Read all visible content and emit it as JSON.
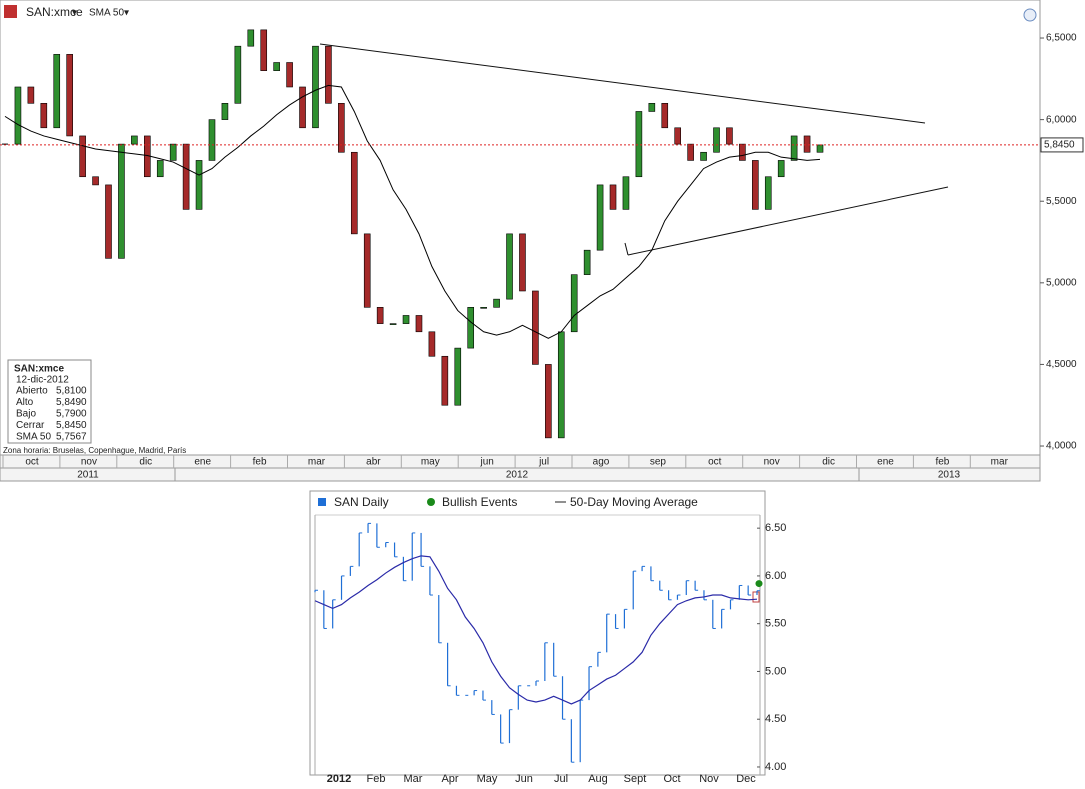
{
  "chart_data": [
    {
      "type": "candlestick",
      "symbol": "SAN:xmce",
      "indicator": "SMA 50",
      "timezone": "Zona horaria: Bruselas, Copenhague, Madrid, París",
      "months": [
        "oct",
        "nov",
        "dic",
        "ene",
        "feb",
        "mar",
        "abr",
        "may",
        "jun",
        "jul",
        "ago",
        "sep",
        "oct",
        "nov",
        "dic",
        "ene",
        "feb",
        "mar"
      ],
      "years": [
        "2011",
        "2012",
        "2013"
      ],
      "ylim": [
        3.945,
        6.733
      ],
      "yticks": [
        {
          "value": 4.0,
          "label": "4,0000"
        },
        {
          "value": 4.5,
          "label": "4,5000"
        },
        {
          "value": 5.0,
          "label": "5,0000"
        },
        {
          "value": 5.5,
          "label": "5,5000"
        },
        {
          "value": 6.0,
          "label": "6,0000"
        },
        {
          "value": 6.5,
          "label": "6,5000"
        }
      ],
      "last_price": {
        "value": 5.845,
        "label": "5,8450"
      },
      "up_color": "#2f8f2f",
      "down_color": "#a52a2a",
      "series": [
        {
          "name": "SAN:xmce",
          "color": "#000000",
          "values": [
            5.85,
            6.2,
            6.1,
            5.95,
            6.4,
            5.9,
            5.65,
            5.6,
            5.15,
            5.85,
            5.9,
            5.65,
            5.75,
            5.85,
            5.45,
            5.75,
            6.0,
            6.1,
            6.45,
            6.55,
            6.3,
            6.35,
            6.2,
            5.95,
            6.45,
            6.1,
            5.8,
            5.3,
            4.85,
            4.75,
            4.75,
            4.8,
            4.7,
            4.55,
            4.25,
            4.6,
            4.85,
            4.85,
            4.9,
            5.3,
            4.95,
            4.5,
            4.05,
            4.7,
            5.05,
            5.2,
            5.6,
            5.45,
            5.65,
            6.05,
            6.1,
            5.95,
            5.85,
            5.75,
            5.8,
            5.95,
            5.85,
            5.75,
            5.45,
            5.65,
            5.75,
            5.9,
            5.8,
            5.845
          ]
        },
        {
          "name": "SMA 50",
          "color": "#000000",
          "values": [
            6.02,
            5.97,
            5.93,
            5.9,
            5.88,
            5.86,
            5.84,
            5.82,
            5.81,
            5.8,
            5.79,
            5.78,
            5.76,
            5.74,
            5.7,
            5.66,
            5.7,
            5.77,
            5.83,
            5.9,
            5.96,
            6.03,
            6.09,
            6.14,
            6.18,
            6.21,
            6.2,
            6.05,
            5.87,
            5.75,
            5.57,
            5.45,
            5.3,
            5.1,
            4.95,
            4.83,
            4.76,
            4.7,
            4.68,
            4.7,
            4.74,
            4.7,
            4.66,
            4.7,
            4.8,
            4.86,
            4.92,
            4.96,
            5.03,
            5.1,
            5.2,
            5.38,
            5.5,
            5.6,
            5.7,
            5.74,
            5.77,
            5.78,
            5.8,
            5.8,
            5.77,
            5.76,
            5.75,
            5.7567
          ]
        }
      ],
      "info": {
        "date": "12-dic-2012",
        "rows": [
          [
            "Abierto",
            "5,8100"
          ],
          [
            "Alto",
            "5,8490"
          ],
          [
            "Bajo",
            "5,7900"
          ],
          [
            "Cerrar",
            "5,8450"
          ],
          [
            "SMA 50",
            "5,7567"
          ]
        ]
      }
    },
    {
      "type": "ohlc",
      "months": [
        "2012",
        "Feb",
        "Mar",
        "Apr",
        "May",
        "Jun",
        "Jul",
        "Aug",
        "Sept",
        "Oct",
        "Nov",
        "Dec"
      ],
      "ylim": [
        3.916,
        6.889
      ],
      "yticks": [
        {
          "value": 4.0,
          "label": "4.00"
        },
        {
          "value": 4.5,
          "label": "4.50"
        },
        {
          "value": 5.0,
          "label": "5.00"
        },
        {
          "value": 5.5,
          "label": "5.50"
        },
        {
          "value": 6.0,
          "label": "6.00"
        },
        {
          "value": 6.5,
          "label": "6.50"
        }
      ],
      "series": [
        {
          "name": "SAN Daily",
          "color": "#1f6fd6",
          "values": [
            5.85,
            5.45,
            5.75,
            6.0,
            6.1,
            6.45,
            6.55,
            6.3,
            6.35,
            6.2,
            5.95,
            6.45,
            6.1,
            5.8,
            5.3,
            4.85,
            4.75,
            4.75,
            4.8,
            4.7,
            4.55,
            4.25,
            4.6,
            4.85,
            4.85,
            4.9,
            5.3,
            4.95,
            4.5,
            4.05,
            4.7,
            5.05,
            5.2,
            5.6,
            5.45,
            5.65,
            6.05,
            6.1,
            5.95,
            5.85,
            5.75,
            5.8,
            5.95,
            5.85,
            5.75,
            5.45,
            5.65,
            5.75,
            5.9,
            5.8,
            5.845
          ]
        },
        {
          "name": "50-Day Moving Average",
          "color": "#2a2aa8",
          "values": [
            5.74,
            5.7,
            5.66,
            5.7,
            5.77,
            5.83,
            5.9,
            5.96,
            6.03,
            6.09,
            6.14,
            6.18,
            6.21,
            6.2,
            6.05,
            5.87,
            5.75,
            5.57,
            5.45,
            5.3,
            5.1,
            4.95,
            4.83,
            4.76,
            4.7,
            4.68,
            4.7,
            4.74,
            4.7,
            4.66,
            4.7,
            4.8,
            4.86,
            4.92,
            4.96,
            5.03,
            5.1,
            5.2,
            5.38,
            5.5,
            5.6,
            5.7,
            5.74,
            5.77,
            5.78,
            5.8,
            5.8,
            5.77,
            5.76,
            5.75,
            5.7567
          ]
        }
      ],
      "events": {
        "name": "Bullish Events",
        "color": "#1a8a1a",
        "values": [
          5.92
        ]
      }
    }
  ]
}
